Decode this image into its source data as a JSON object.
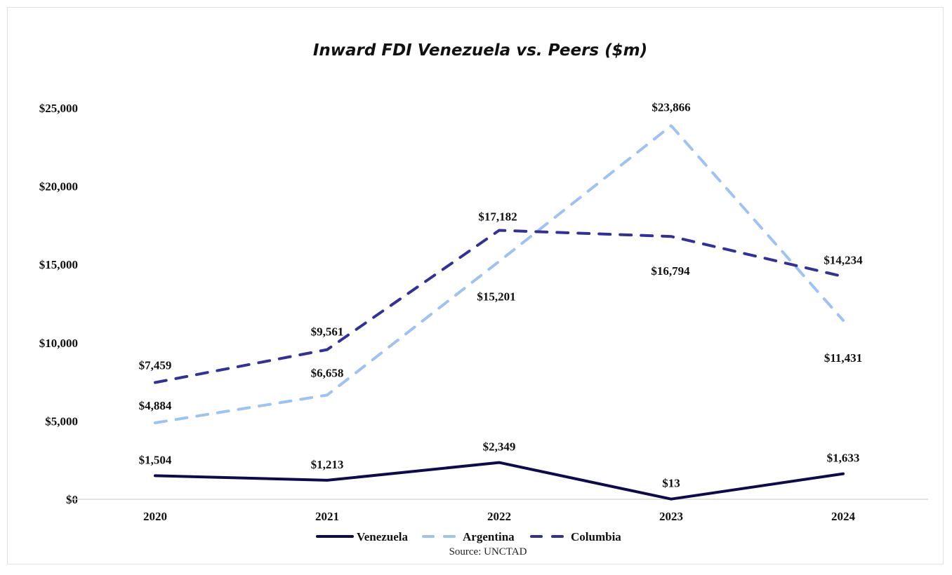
{
  "chart_data": {
    "type": "line",
    "title": "Inward FDI Venezuela vs. Peers ($m)",
    "xlabel": "",
    "ylabel": "",
    "categories": [
      "2020",
      "2021",
      "2022",
      "2023",
      "2024"
    ],
    "ylim": [
      0,
      25000
    ],
    "yticks": [
      0,
      5000,
      10000,
      15000,
      20000,
      25000
    ],
    "ytick_labels": [
      "$0",
      "$5,000",
      "$10,000",
      "$15,000",
      "$20,000",
      "$25,000"
    ],
    "grid": false,
    "legend_position": "bottom",
    "series": [
      {
        "name": "Venezuela",
        "style": "solid",
        "color": "#0f0a4e",
        "values": [
          1504,
          1213,
          2349,
          13,
          1633
        ],
        "labels": [
          "$1,504",
          "$1,213",
          "$2,349",
          "$13",
          "$1,633"
        ]
      },
      {
        "name": "Argentina",
        "style": "dashed",
        "color": "#9cc3f3",
        "values": [
          4884,
          6658,
          15201,
          23866,
          11431
        ],
        "labels": [
          "$4,884",
          "$6,658",
          "$15,201",
          "$23,866",
          "$11,431"
        ]
      },
      {
        "name": "Columbia",
        "style": "dashed",
        "color": "#33309a",
        "values": [
          7459,
          9561,
          17182,
          16794,
          14234
        ],
        "labels": [
          "$7,459",
          "$9,561",
          "$17,182",
          "$16,794",
          "$14,234"
        ]
      }
    ],
    "source": "Source: UNCTAD"
  }
}
